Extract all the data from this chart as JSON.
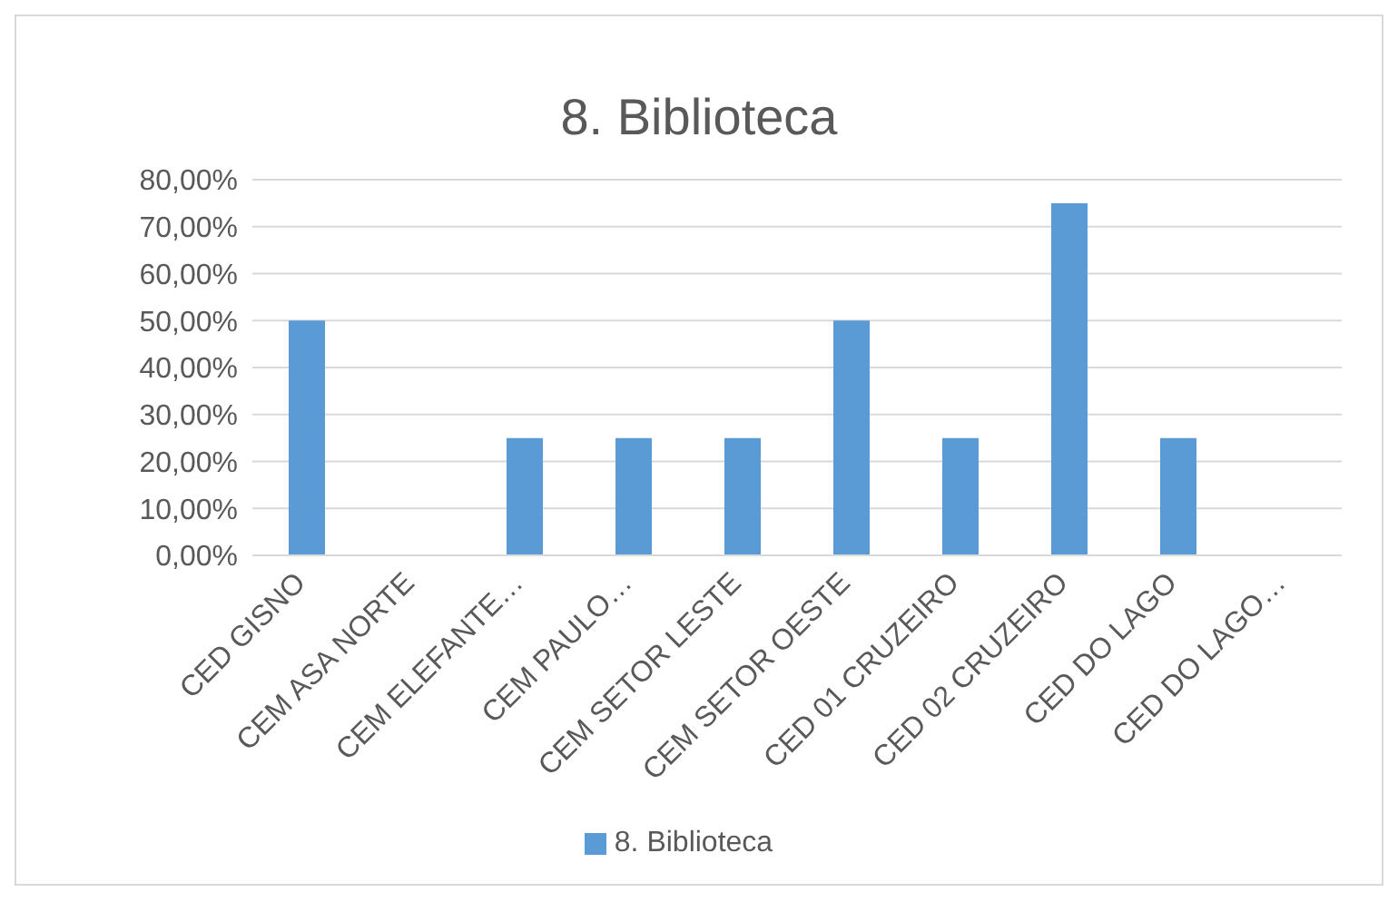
{
  "chart_data": {
    "type": "bar",
    "title": "8. Biblioteca",
    "categories": [
      "CED GISNO",
      "CEM ASA NORTE",
      "CEM ELEFANTE…",
      "CEM PAULO…",
      "CEM SETOR LESTE",
      "CEM SETOR OESTE",
      "CED 01 CRUZEIRO",
      "CED 02 CRUZEIRO",
      "CED DO LAGO",
      "CED DO LAGO…"
    ],
    "series": [
      {
        "name": "8. Biblioteca",
        "color": "#5b9bd5",
        "values": [
          50,
          0,
          25,
          25,
          25,
          50,
          25,
          75,
          25,
          0
        ]
      }
    ],
    "ylim": [
      0,
      80
    ],
    "yticks": [
      {
        "value": 0,
        "label": "0,00%"
      },
      {
        "value": 10,
        "label": "10,00%"
      },
      {
        "value": 20,
        "label": "20,00%"
      },
      {
        "value": 30,
        "label": "30,00%"
      },
      {
        "value": 40,
        "label": "40,00%"
      },
      {
        "value": 50,
        "label": "50,00%"
      },
      {
        "value": 60,
        "label": "60,00%"
      },
      {
        "value": 70,
        "label": "70,00%"
      },
      {
        "value": 80,
        "label": "80,00%"
      }
    ],
    "grid": "y",
    "legend": "bottom"
  }
}
